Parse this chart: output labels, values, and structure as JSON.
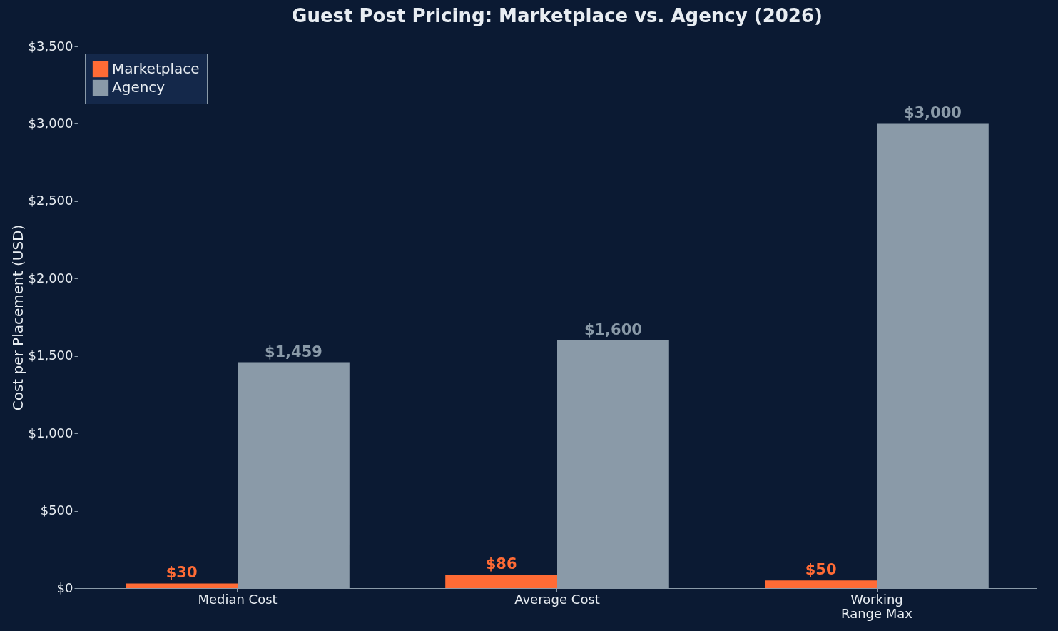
{
  "chart_data": {
    "type": "bar",
    "title": "Guest Post Pricing: Marketplace vs. Agency (2026)",
    "ylabel": "Cost per Placement (USD)",
    "categories": [
      "Median Cost",
      "Average Cost",
      "Working\nRange Max"
    ],
    "series": [
      {
        "name": "Marketplace",
        "color": "#ff6b35",
        "values": [
          30,
          86,
          50
        ],
        "value_labels": [
          "$30",
          "$86",
          "$50"
        ]
      },
      {
        "name": "Agency",
        "color": "#8a9aa8",
        "values": [
          1459,
          1600,
          3000
        ],
        "value_labels": [
          "$1,459",
          "$1,600",
          "$3,000"
        ]
      }
    ],
    "ylim": [
      0,
      3500
    ],
    "yticks": [
      {
        "value": 0,
        "label": "$0"
      },
      {
        "value": 500,
        "label": "$500"
      },
      {
        "value": 1000,
        "label": "$1,000"
      },
      {
        "value": 1500,
        "label": "$1,500"
      },
      {
        "value": 2000,
        "label": "$2,000"
      },
      {
        "value": 2500,
        "label": "$2,500"
      },
      {
        "value": 3000,
        "label": "$3,000"
      },
      {
        "value": 3500,
        "label": "$3,500"
      }
    ],
    "grid": false,
    "legend": "top left"
  }
}
